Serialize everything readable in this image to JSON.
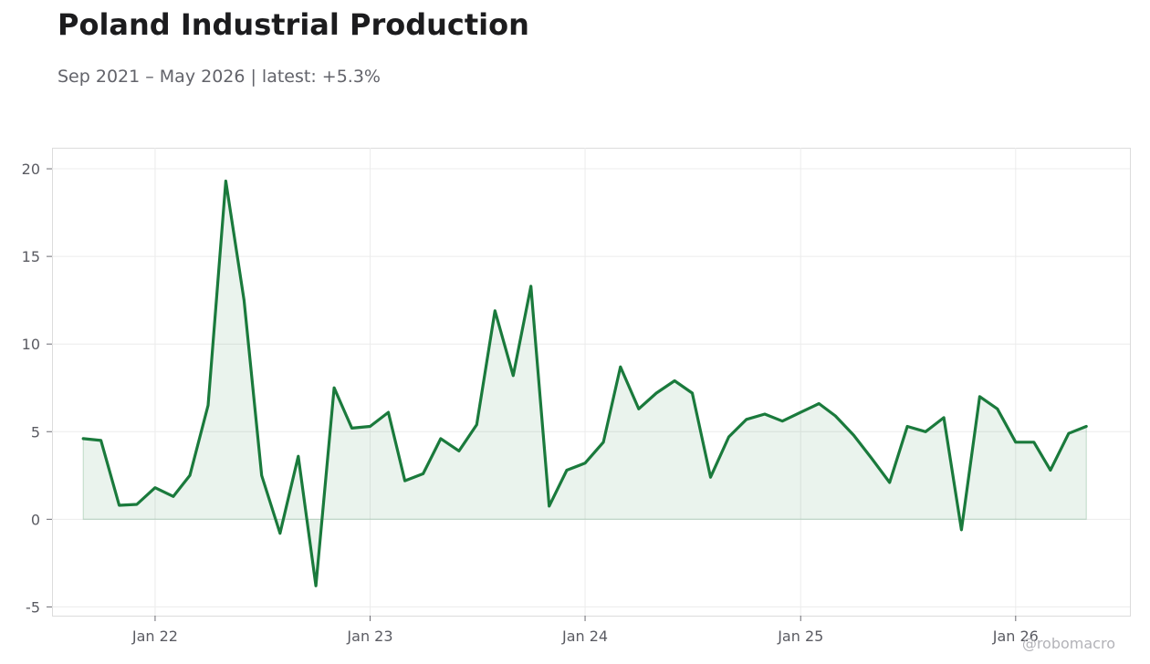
{
  "title": "Poland Industrial Production",
  "subtitle": "Sep 2021 – May 2026 | latest: +5.3%",
  "watermark": "@robomacro",
  "colors": {
    "line": "#1a7a3c",
    "fill": "#1a7a3c",
    "grid": "#ececec",
    "frame": "#dcdcdc"
  },
  "chart_data": {
    "type": "area",
    "title": "Poland Industrial Production",
    "xlabel": "",
    "ylabel": "",
    "ylim": [
      -5.5,
      21.2
    ],
    "xlim": [
      "2021-07-10",
      "2026-07-14"
    ],
    "grid": true,
    "legend": "none",
    "y_ticks": [
      -5,
      0,
      5,
      10,
      15,
      20
    ],
    "y_tick_labels": [
      "-5",
      "0",
      "5",
      "10",
      "15",
      "20"
    ],
    "x_ticks": [
      "2022-01-01",
      "2023-01-01",
      "2024-01-01",
      "2025-01-01",
      "2026-01-01"
    ],
    "x_tick_labels": [
      "Jan 22",
      "Jan 23",
      "Jan 24",
      "Jan 25",
      "Jan 26"
    ],
    "series": [
      {
        "x": [
          "2021-09-01",
          "2021-10-01",
          "2021-11-01",
          "2021-12-01",
          "2022-01-01",
          "2022-02-01",
          "2022-03-01",
          "2022-04-01",
          "2022-05-01",
          "2022-06-01",
          "2022-07-01",
          "2022-08-01",
          "2022-09-01",
          "2022-10-01",
          "2022-11-01",
          "2022-12-01",
          "2023-01-01",
          "2023-02-01",
          "2023-03-01",
          "2023-04-01",
          "2023-05-01",
          "2023-06-01",
          "2023-07-01",
          "2023-08-01",
          "2023-09-01",
          "2023-10-01",
          "2023-11-01",
          "2023-12-01",
          "2024-01-01",
          "2024-02-01",
          "2024-03-01",
          "2024-04-01",
          "2024-05-01",
          "2024-06-01",
          "2024-07-01",
          "2024-08-01",
          "2024-09-01",
          "2024-10-01",
          "2024-11-01",
          "2024-12-01",
          "2025-01-01",
          "2025-02-01",
          "2025-03-01",
          "2025-04-01",
          "2025-05-01",
          "2025-06-01",
          "2025-07-01",
          "2025-08-01",
          "2025-09-01",
          "2025-10-01",
          "2025-11-01",
          "2025-12-01",
          "2026-01-01",
          "2026-02-01",
          "2026-03-01",
          "2026-04-01",
          "2026-05-01"
        ],
        "values": [
          4.6,
          4.5,
          0.8,
          0.85,
          1.8,
          1.3,
          2.5,
          6.5,
          19.3,
          12.5,
          2.5,
          -0.8,
          3.6,
          -3.8,
          7.5,
          5.2,
          5.3,
          6.1,
          2.2,
          2.6,
          4.6,
          3.9,
          5.4,
          11.9,
          8.2,
          13.3,
          0.75,
          2.8,
          3.2,
          4.4,
          8.7,
          6.3,
          7.2,
          7.9,
          7.2,
          2.4,
          4.7,
          5.7,
          6.0,
          5.6,
          6.1,
          6.6,
          5.9,
          4.8,
          3.5,
          2.1,
          5.3,
          5.0,
          5.8,
          -0.6,
          7.0,
          6.3,
          4.4,
          4.4,
          2.8,
          4.9,
          5.3
        ]
      }
    ]
  }
}
